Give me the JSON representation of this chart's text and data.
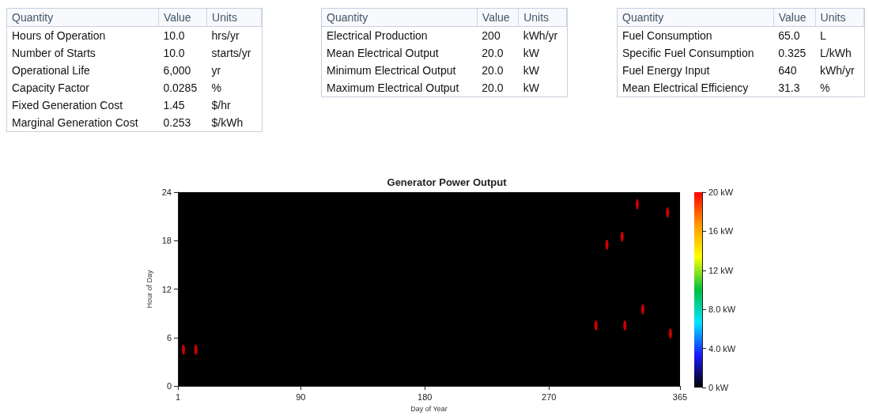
{
  "chart_data": [
    {
      "type": "other",
      "annotations": [
        "Quantity",
        "Value",
        "Units",
        "Hours of Operation",
        "10.0",
        "hrs/yr",
        "Number of Starts",
        "10.0",
        "starts/yr",
        "Operational Life",
        "6,000",
        "yr",
        "Capacity Factor",
        "0.0285",
        "%",
        "Fixed Generation Cost",
        "1.45",
        "$/hr",
        "Marginal Generation Cost",
        "0.253",
        "$/kWh"
      ]
    },
    {
      "type": "other",
      "annotations": [
        "Quantity",
        "Value",
        "Units",
        "Electrical Production",
        "200",
        "kWh/yr",
        "Mean Electrical Output",
        "20.0",
        "kW",
        "Minimum Electrical Output",
        "20.0",
        "kW",
        "Maximum Electrical Output",
        "20.0",
        "kW"
      ]
    },
    {
      "type": "other",
      "annotations": [
        "Quantity",
        "Value",
        "Units",
        "Fuel Consumption",
        "65.0",
        "L",
        "Specific Fuel Consumption",
        "0.325",
        "L/kWh",
        "Fuel Energy Input",
        "640",
        "kWh/yr",
        "Mean Electrical Efficiency",
        "31.3",
        "%"
      ]
    },
    {
      "type": "scatter",
      "title": "Generator Power Output",
      "xlabel": "Day of Year",
      "ylabel": "Hour of Day",
      "x": [
        5,
        14,
        304,
        312,
        323,
        325,
        334,
        338,
        356,
        358
      ],
      "values": [
        4.5,
        4.5,
        7.5,
        17.5,
        18.5,
        7.5,
        22.5,
        9.5,
        21.5,
        6.5
      ],
      "cvalues": [
        20,
        20,
        20,
        20,
        20,
        20,
        20,
        20,
        20,
        20
      ],
      "marker": "circle",
      "xlim": [
        1,
        365
      ],
      "xticks": [
        1,
        90,
        180,
        270,
        365
      ],
      "ylim": [
        0,
        24
      ],
      "yticks": [
        0,
        6,
        12,
        18,
        24
      ],
      "clim": [
        0,
        20
      ],
      "cticks": [
        {
          "value": 0,
          "label": "0 kW"
        },
        {
          "value": 4,
          "label": "4.0 kW"
        },
        {
          "value": 8,
          "label": "8.0 kW"
        },
        {
          "value": 12,
          "label": "12 kW"
        },
        {
          "value": 16,
          "label": "16 kW"
        },
        {
          "value": 20,
          "label": "20 kW"
        }
      ]
    }
  ]
}
